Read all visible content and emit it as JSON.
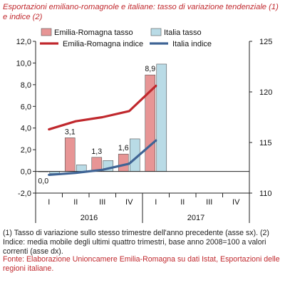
{
  "title": "Esportazioni emiliano-romagnole e italiane: tasso di variazione tendenziale (1) e indice (2)",
  "notes": "(1) Tasso di variazione sullo stesso trimestre dell'anno precedente (asse sx). (2) Indice: media mobile degli ultimi quattro trimestri, base anno 2008=100 a valori correnti (asse dx).",
  "source": "Fonte: Elaborazione Unioncamere Emilia-Romagna su dati Istat, Esportazioni delle regioni italiane.",
  "colors": {
    "er_bar": "#e79595",
    "it_bar": "#b9dbe6",
    "er_line": "#c0282d",
    "it_line": "#3f6495",
    "red_text": "#c0282d"
  },
  "chart_data": {
    "type": "bar",
    "categories": [
      "I",
      "II",
      "III",
      "IV",
      "I",
      "II",
      "III",
      "IV"
    ],
    "groups": [
      {
        "label": "2016",
        "span": [
          0,
          3
        ]
      },
      {
        "label": "2017",
        "span": [
          4,
          7
        ]
      }
    ],
    "ylim": [
      -2,
      12
    ],
    "yticks": [
      "-2,0",
      "0,0",
      "2,0",
      "4,0",
      "6,0",
      "8,0",
      "10,0",
      "12,0"
    ],
    "y2lim": [
      110,
      125
    ],
    "y2ticks": [
      "110",
      "115",
      "120",
      "125"
    ],
    "series": [
      {
        "name": "Emilia-Romagna tasso",
        "kind": "bar",
        "axis": "left",
        "values": [
          0.0,
          3.1,
          1.3,
          1.6,
          8.9,
          null,
          null,
          null
        ],
        "labels": [
          "0,0",
          "3,1",
          "1,3",
          "1,6",
          "8,9",
          "",
          "",
          ""
        ]
      },
      {
        "name": "Italia tasso",
        "kind": "bar",
        "axis": "left",
        "values": [
          -0.2,
          0.6,
          1.0,
          3.0,
          9.9,
          null,
          null,
          null
        ]
      },
      {
        "name": "Emilia-Romagna indice",
        "kind": "line",
        "axis": "right",
        "values": [
          116.3,
          117.1,
          117.5,
          118.1,
          120.6,
          null,
          null,
          null
        ]
      },
      {
        "name": "Italia indice",
        "kind": "line",
        "axis": "right",
        "values": [
          111.8,
          112.0,
          112.3,
          112.9,
          115.2,
          null,
          null,
          null
        ]
      }
    ]
  }
}
